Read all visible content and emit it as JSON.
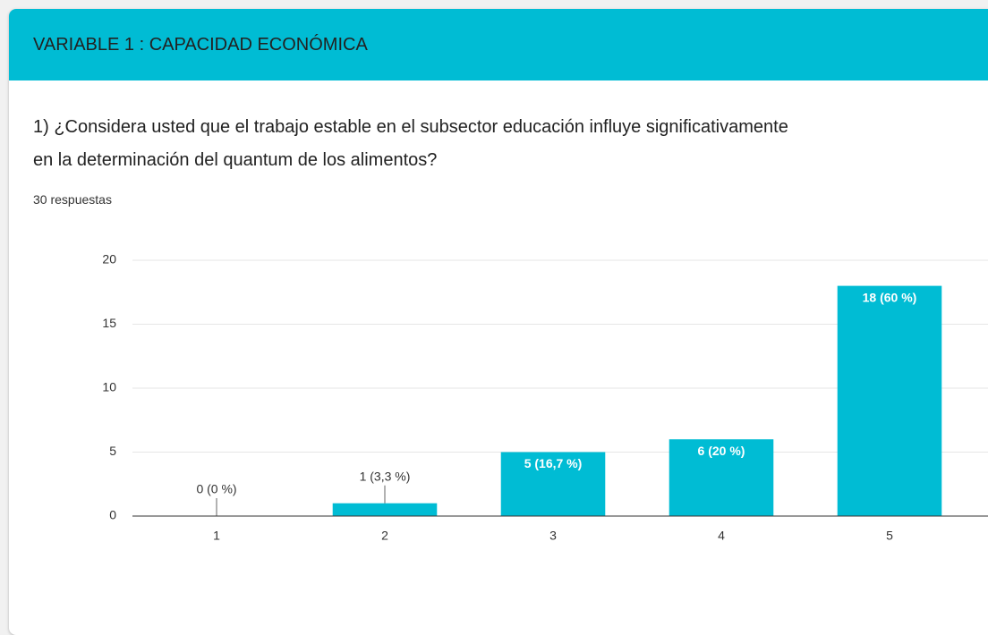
{
  "header": {
    "title": "VARIABLE 1 : CAPACIDAD ECONÓMICA"
  },
  "question": "1) ¿Considera usted que el trabajo estable en el subsector educación influye significativamente en la determinación del quantum de los alimentos?",
  "responses": "30 respuestas",
  "chart_data": {
    "type": "bar",
    "categories": [
      "1",
      "2",
      "3",
      "4",
      "5"
    ],
    "values": [
      0,
      1,
      5,
      6,
      18
    ],
    "value_labels": [
      "0 (0 %)",
      "1 (3,3 %)",
      "5 (16,7 %)",
      "6 (20 %)",
      "18 (60 %)"
    ],
    "color": "#00bcd4",
    "ylim": [
      0,
      20
    ],
    "yticks": [
      0,
      5,
      10,
      15,
      20
    ],
    "grid": true
  }
}
